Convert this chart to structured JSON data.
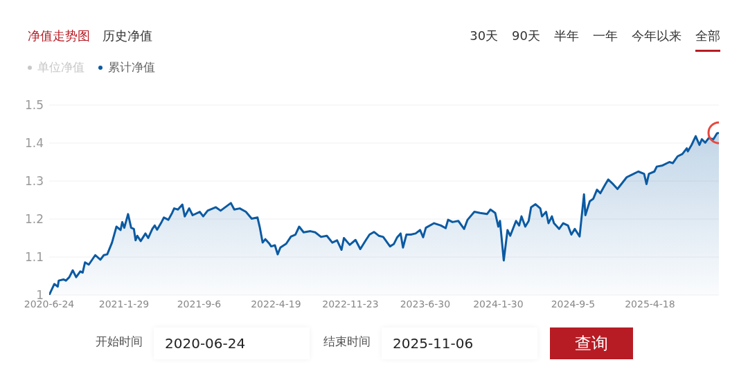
{
  "chart_data": {
    "type": "area",
    "title": "净值走势图",
    "annotations": [
      "历史净值",
      "30天",
      "90天",
      "半年",
      "一年",
      "今年以来",
      "全部",
      "单位净值",
      "开始时间",
      "2020-06-24",
      "结束时间",
      "2025-11-06",
      "查询"
    ],
    "x": [
      "2020-06-24",
      "2020-07-09",
      "2020-07-19",
      "2020-07-22",
      "2020-08-05",
      "2020-08-12",
      "2020-08-22",
      "2020-09-01",
      "2020-09-11",
      "2020-09-23",
      "2020-09-30",
      "2020-10-07",
      "2020-10-18",
      "2020-11-06",
      "2020-11-21",
      "2020-12-01",
      "2020-12-11",
      "2020-12-25",
      "2021-01-07",
      "2021-01-19",
      "2021-01-24",
      "2021-01-30",
      "2021-02-10",
      "2021-02-19",
      "2021-02-27",
      "2021-03-04",
      "2021-03-09",
      "2021-03-19",
      "2021-04-02",
      "2021-04-10",
      "2021-04-22",
      "2021-04-29",
      "2021-05-06",
      "2021-05-19",
      "2021-05-26",
      "2021-06-08",
      "2021-06-19",
      "2021-06-25",
      "2021-07-06",
      "2021-07-19",
      "2021-07-26",
      "2021-08-08",
      "2021-08-18",
      "2021-09-08",
      "2021-09-18",
      "2021-10-01",
      "2021-10-25",
      "2021-11-08",
      "2021-12-08",
      "2021-12-18",
      "2022-01-03",
      "2022-01-21",
      "2022-02-07",
      "2022-02-24",
      "2022-03-03",
      "2022-03-11",
      "2022-03-19",
      "2022-03-30",
      "2022-04-05",
      "2022-04-16",
      "2022-04-24",
      "2022-05-02",
      "2022-05-19",
      "2022-06-02",
      "2022-06-15",
      "2022-06-26",
      "2022-07-09",
      "2022-07-29",
      "2022-08-12",
      "2022-08-29",
      "2022-09-15",
      "2022-10-01",
      "2022-10-15",
      "2022-10-28",
      "2022-11-04",
      "2022-11-21",
      "2022-12-08",
      "2022-12-22",
      "2023-01-07",
      "2023-01-18",
      "2023-01-31",
      "2023-02-14",
      "2023-02-27",
      "2023-03-19",
      "2023-03-30",
      "2023-04-09",
      "2023-04-19",
      "2023-04-26",
      "2023-05-06",
      "2023-05-19",
      "2023-06-02",
      "2023-06-15",
      "2023-06-24",
      "2023-07-02",
      "2023-07-26",
      "2023-08-15",
      "2023-08-29",
      "2023-09-05",
      "2023-09-18",
      "2023-10-05",
      "2023-10-22",
      "2023-11-01",
      "2023-11-21",
      "2023-12-08",
      "2023-12-28",
      "2024-01-07",
      "2024-01-21",
      "2024-01-30",
      "2024-02-04",
      "2024-02-15",
      "2024-02-26",
      "2024-03-05",
      "2024-03-22",
      "2024-03-31",
      "2024-04-07",
      "2024-04-18",
      "2024-04-28",
      "2024-05-05",
      "2024-05-18",
      "2024-06-01",
      "2024-06-06",
      "2024-06-18",
      "2024-06-25",
      "2024-07-05",
      "2024-07-11",
      "2024-07-26",
      "2024-08-07",
      "2024-08-21",
      "2024-08-31",
      "2024-09-10",
      "2024-09-24",
      "2024-10-07",
      "2024-10-11",
      "2024-10-24",
      "2024-11-03",
      "2024-11-14",
      "2024-11-24",
      "2024-12-07",
      "2024-12-17",
      "2024-12-31",
      "2025-01-13",
      "2025-01-27",
      "2025-02-09",
      "2025-02-23",
      "2025-03-15",
      "2025-04-01",
      "2025-04-08",
      "2025-04-15",
      "2025-05-01",
      "2025-05-08",
      "2025-05-25",
      "2025-06-14",
      "2025-06-24",
      "2025-07-08",
      "2025-07-22",
      "2025-08-04",
      "2025-08-07",
      "2025-08-18",
      "2025-08-30",
      "2025-09-10",
      "2025-09-17",
      "2025-09-27",
      "2025-10-07",
      "2025-10-21",
      "2025-10-31",
      "2025-11-06"
    ],
    "series": [
      {
        "name": "累计净值",
        "color": "#0b5aa2",
        "values": [
          1.0,
          1.029,
          1.022,
          1.038,
          1.041,
          1.038,
          1.047,
          1.065,
          1.047,
          1.062,
          1.059,
          1.086,
          1.08,
          1.105,
          1.093,
          1.105,
          1.107,
          1.138,
          1.18,
          1.171,
          1.192,
          1.177,
          1.213,
          1.177,
          1.174,
          1.144,
          1.156,
          1.142,
          1.162,
          1.15,
          1.174,
          1.183,
          1.172,
          1.192,
          1.204,
          1.198,
          1.216,
          1.228,
          1.225,
          1.238,
          1.207,
          1.228,
          1.21,
          1.219,
          1.207,
          1.222,
          1.231,
          1.222,
          1.242,
          1.225,
          1.228,
          1.219,
          1.201,
          1.204,
          1.177,
          1.138,
          1.147,
          1.136,
          1.128,
          1.131,
          1.107,
          1.125,
          1.135,
          1.154,
          1.159,
          1.18,
          1.165,
          1.168,
          1.165,
          1.153,
          1.156,
          1.138,
          1.144,
          1.119,
          1.15,
          1.132,
          1.145,
          1.121,
          1.144,
          1.159,
          1.166,
          1.156,
          1.153,
          1.128,
          1.134,
          1.152,
          1.162,
          1.125,
          1.159,
          1.159,
          1.162,
          1.171,
          1.152,
          1.177,
          1.189,
          1.183,
          1.176,
          1.198,
          1.192,
          1.195,
          1.174,
          1.198,
          1.219,
          1.216,
          1.213,
          1.225,
          1.216,
          1.18,
          1.195,
          1.091,
          1.171,
          1.156,
          1.195,
          1.183,
          1.207,
          1.18,
          1.195,
          1.231,
          1.239,
          1.228,
          1.207,
          1.219,
          1.189,
          1.207,
          1.189,
          1.174,
          1.189,
          1.183,
          1.159,
          1.174,
          1.154,
          1.265,
          1.21,
          1.247,
          1.253,
          1.277,
          1.268,
          1.289,
          1.304,
          1.292,
          1.279,
          1.295,
          1.31,
          1.316,
          1.325,
          1.319,
          1.292,
          1.319,
          1.325,
          1.338,
          1.341,
          1.35,
          1.347,
          1.365,
          1.371,
          1.386,
          1.378,
          1.395,
          1.418,
          1.395,
          1.41,
          1.401,
          1.413,
          1.41,
          1.425,
          1.427
        ]
      }
    ],
    "xlim": [
      "2020-06-24",
      "2025-11-06"
    ],
    "xticks": [
      {
        "value": "2020-06-24",
        "label": "2020-6-24"
      },
      {
        "value": "2021-01-29",
        "label": "2021-1-29"
      },
      {
        "value": "2021-09-06",
        "label": "2021-9-6"
      },
      {
        "value": "2022-04-19",
        "label": "2022-4-19"
      },
      {
        "value": "2022-11-23",
        "label": "2022-11-23"
      },
      {
        "value": "2023-06-30",
        "label": "2023-6-30"
      },
      {
        "value": "2024-01-30",
        "label": "2024-1-30"
      },
      {
        "value": "2024-09-05",
        "label": "2024-9-5"
      },
      {
        "value": "2025-04-18",
        "label": "2025-4-18"
      }
    ],
    "ylim": [
      1,
      1.5
    ],
    "yticks": [
      1,
      1.1,
      1.2,
      1.3,
      1.4,
      1.5
    ],
    "grid": "y",
    "legend": "top left"
  }
}
